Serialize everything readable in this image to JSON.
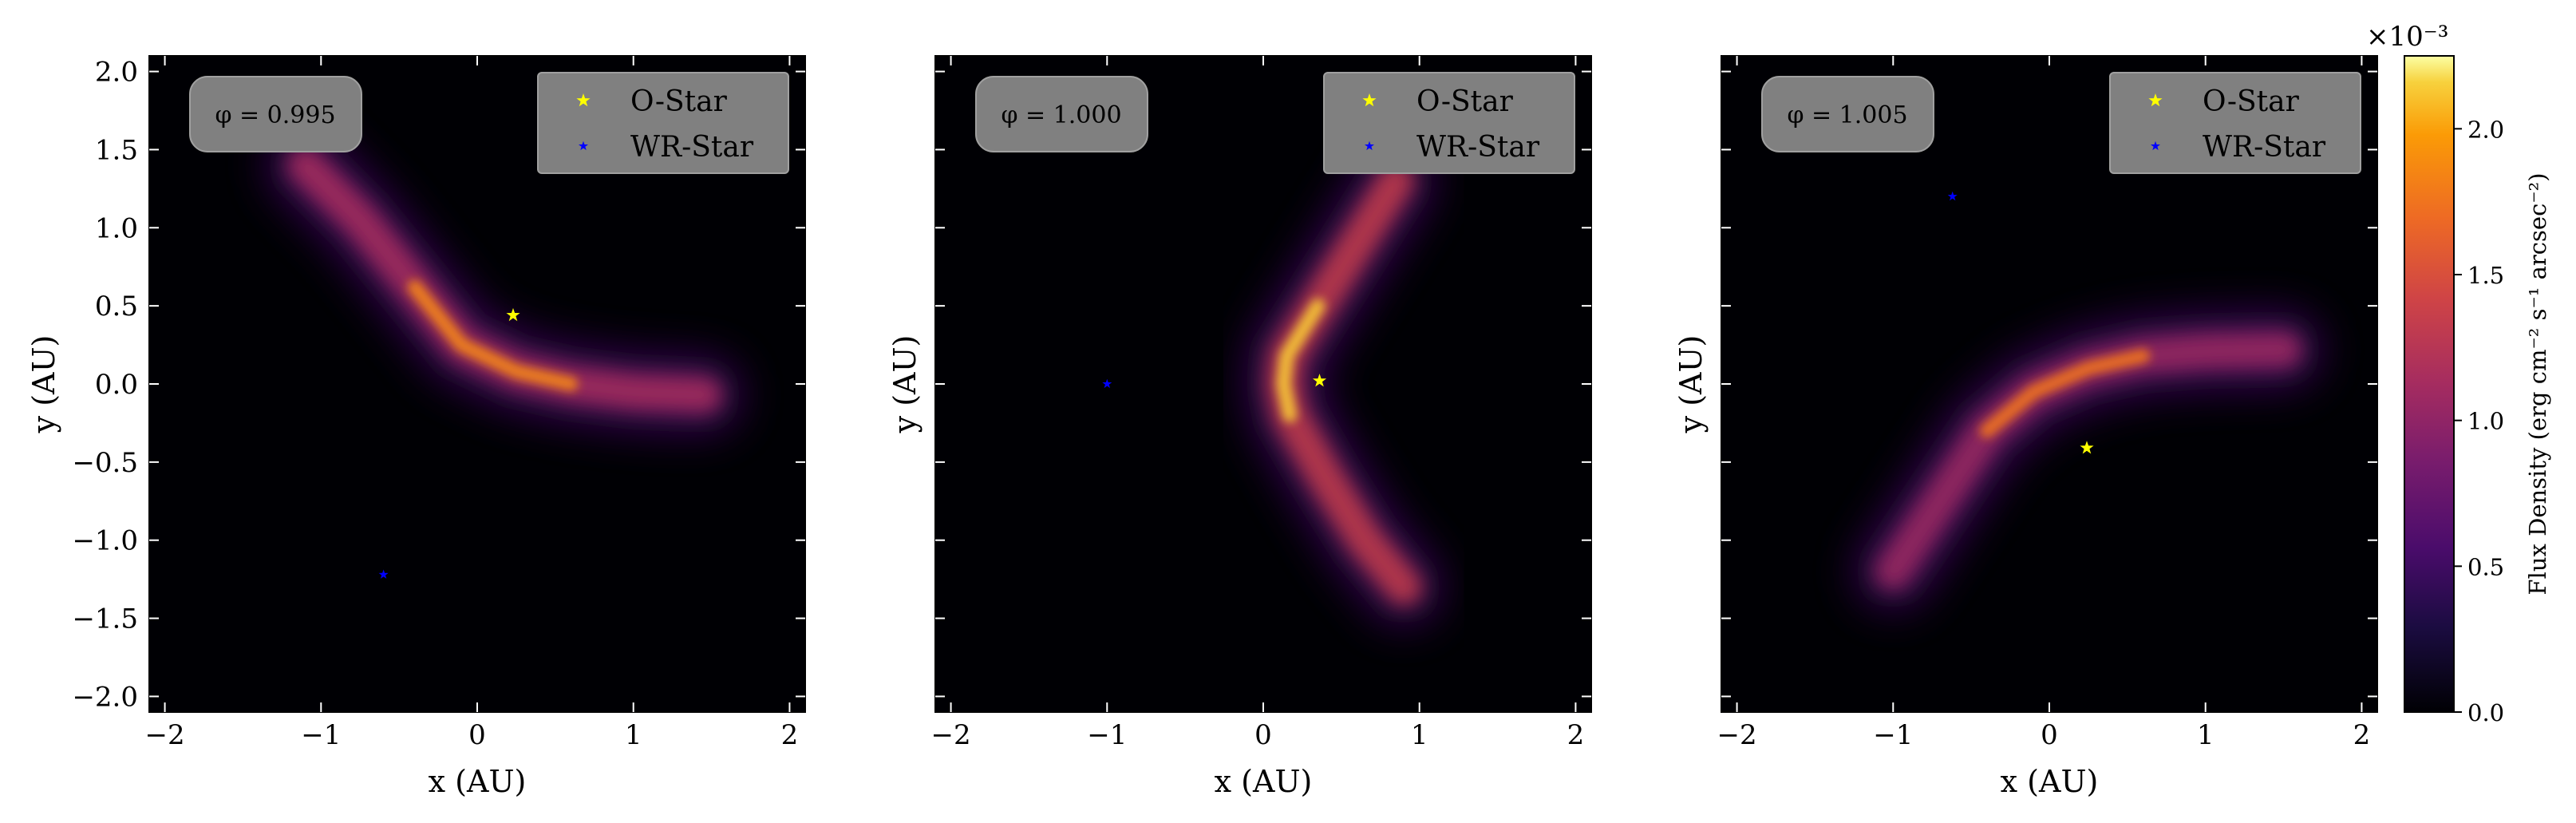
{
  "chart_data": [
    {
      "type": "heatmap",
      "phase_label": "φ = 0.995",
      "xlabel": "x (AU)",
      "ylabel": "y (AU)",
      "xlim": [
        -2.1,
        2.1
      ],
      "ylim": [
        -2.1,
        2.1
      ],
      "xticks": [
        "−2",
        "−1",
        "0",
        "1",
        "2"
      ],
      "yticks": [
        "2.0",
        "1.5",
        "1.0",
        "0.5",
        "0.0",
        "−0.5",
        "−1.0",
        "−1.5",
        "−2.0"
      ],
      "legend": [
        "O-Star",
        "WR-Star"
      ],
      "legend_position": "top-right",
      "stars": [
        {
          "name": "O-Star",
          "x": 0.23,
          "y": 0.44,
          "color": "#ffff00"
        },
        {
          "name": "WR-Star",
          "x": -0.6,
          "y": -1.22,
          "color": "#0000ff"
        }
      ],
      "emission": {
        "x": [
          -1.1,
          -0.75,
          -0.4,
          -0.1,
          0.25,
          0.6,
          1.0,
          1.45
        ],
        "y": [
          1.4,
          1.05,
          0.62,
          0.25,
          0.08,
          0.0,
          -0.05,
          -0.07
        ],
        "peak": 0.75
      }
    },
    {
      "type": "heatmap",
      "phase_label": "φ = 1.000",
      "xlabel": "x (AU)",
      "ylabel": "y (AU)",
      "xlim": [
        -2.1,
        2.1
      ],
      "ylim": [
        -2.1,
        2.1
      ],
      "xticks": [
        "−2",
        "−1",
        "0",
        "1",
        "2"
      ],
      "legend": [
        "O-Star",
        "WR-Star"
      ],
      "legend_position": "top-right",
      "stars": [
        {
          "name": "O-Star",
          "x": 0.36,
          "y": 0.02,
          "color": "#ffff00"
        },
        {
          "name": "WR-Star",
          "x": -1.0,
          "y": 0.0,
          "color": "#0000ff"
        }
      ],
      "emission": {
        "x": [
          0.85,
          0.6,
          0.35,
          0.15,
          0.13,
          0.17,
          0.4,
          0.65,
          0.9
        ],
        "y": [
          1.3,
          0.9,
          0.5,
          0.18,
          0.0,
          -0.2,
          -0.6,
          -1.0,
          -1.3
        ],
        "peak": 1.0
      }
    },
    {
      "type": "heatmap",
      "phase_label": "φ = 1.005",
      "xlabel": "x (AU)",
      "ylabel": "y (AU)",
      "xlim": [
        -2.1,
        2.1
      ],
      "ylim": [
        -2.1,
        2.1
      ],
      "xticks": [
        "−2",
        "−1",
        "0",
        "1",
        "2"
      ],
      "legend": [
        "O-Star",
        "WR-Star"
      ],
      "legend_position": "top-right",
      "stars": [
        {
          "name": "O-Star",
          "x": 0.24,
          "y": -0.41,
          "color": "#ffff00"
        },
        {
          "name": "WR-Star",
          "x": -0.62,
          "y": 1.2,
          "color": "#0000ff"
        }
      ],
      "emission": {
        "x": [
          -1.0,
          -0.7,
          -0.4,
          -0.1,
          0.25,
          0.6,
          1.0,
          1.5
        ],
        "y": [
          -1.2,
          -0.75,
          -0.3,
          -0.05,
          0.1,
          0.18,
          0.21,
          0.22
        ],
        "peak": 0.65
      }
    }
  ],
  "colorbar": {
    "label": "Flux Density (erg cm⁻² s⁻¹ arcsec⁻²)",
    "exponent": "×10⁻³",
    "ticks": [
      "0.0",
      "0.5",
      "1.0",
      "1.5",
      "2.0"
    ],
    "tick_values": [
      0.0,
      0.5,
      1.0,
      1.5,
      2.0
    ],
    "range": [
      0.0,
      2.25
    ],
    "colormap": "inferno"
  }
}
